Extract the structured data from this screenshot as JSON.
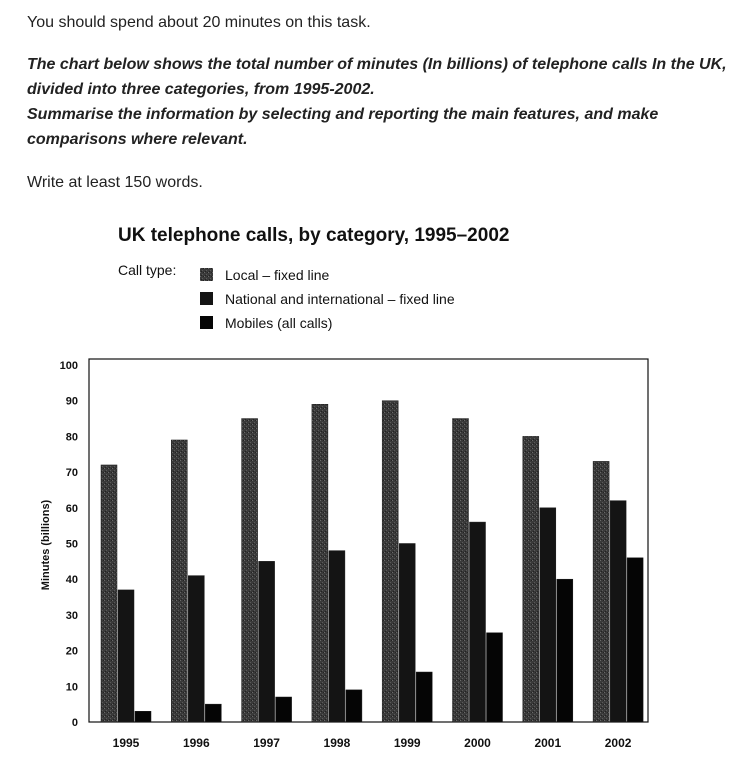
{
  "task": {
    "time_note": "You should spend about 20 minutes on this task.",
    "instruction_line1": "The chart below shows the total number of minutes (In billions) of telephone calls In the UK, divided into three categories, from 1995-2002.",
    "instruction_line2": "Summarise the information by selecting and reporting the main features, and make comparisons where relevant.",
    "word_limit": "Write at least 150 words."
  },
  "colors": {
    "local": "#3a3a3a",
    "national": "#141414",
    "mobiles": "#050505",
    "text": "#222222",
    "axis": "#111111"
  },
  "chart_data": {
    "type": "bar",
    "title": "UK telephone calls, by category, 1995–2002",
    "legend_title": "Call type:",
    "legend_position": "top-left",
    "xlabel": "",
    "ylabel": "Minutes (billions)",
    "ylim": [
      0,
      100
    ],
    "yticks": [
      "0",
      "10",
      "20",
      "30",
      "40",
      "50",
      "60",
      "70",
      "80",
      "90",
      "100"
    ],
    "grid": false,
    "categories": [
      "1995",
      "1996",
      "1997",
      "1998",
      "1999",
      "2000",
      "2001",
      "2002"
    ],
    "series": [
      {
        "name": "Local – fixed line",
        "values": [
          72,
          79,
          85,
          89,
          90,
          85,
          80,
          73
        ]
      },
      {
        "name": "National and international – fixed line",
        "values": [
          37,
          41,
          45,
          48,
          50,
          56,
          60,
          62
        ]
      },
      {
        "name": "Mobiles (all calls)",
        "values": [
          3,
          5,
          7,
          9,
          14,
          25,
          40,
          46
        ]
      }
    ]
  }
}
